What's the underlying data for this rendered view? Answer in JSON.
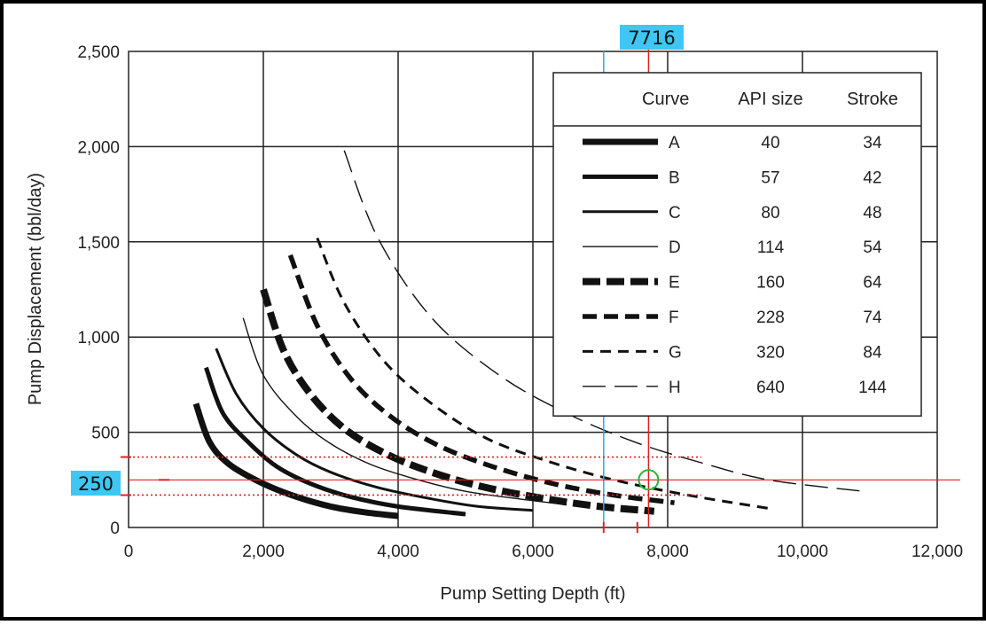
{
  "chart_data": {
    "type": "line",
    "title": "",
    "xlabel": "Pump Setting Depth (ft)",
    "ylabel": "Pump Displacement (bbl/day)",
    "xlim": [
      0,
      12000
    ],
    "ylim": [
      0,
      2500
    ],
    "xticks": [
      0,
      2000,
      4000,
      6000,
      8000,
      10000,
      12000
    ],
    "xtick_labels": [
      "0",
      "2,000",
      "4,000",
      "6,000",
      "8,000",
      "10,000",
      "12,000"
    ],
    "yticks": [
      0,
      500,
      1000,
      1500,
      2000,
      2500
    ],
    "ytick_labels": [
      "0",
      "500",
      "1,000",
      "1,500",
      "2,000",
      "2,500"
    ],
    "grid": true,
    "legend": {
      "placement": "top-right",
      "headers": [
        "Curve",
        "API size",
        "Stroke"
      ],
      "rows": [
        {
          "curve": "A",
          "api_size": "40",
          "stroke": "34"
        },
        {
          "curve": "B",
          "api_size": "57",
          "stroke": "42"
        },
        {
          "curve": "C",
          "api_size": "80",
          "stroke": "48"
        },
        {
          "curve": "D",
          "api_size": "114",
          "stroke": "54"
        },
        {
          "curve": "E",
          "api_size": "160",
          "stroke": "64"
        },
        {
          "curve": "F",
          "api_size": "228",
          "stroke": "74"
        },
        {
          "curve": "G",
          "api_size": "320",
          "stroke": "84"
        },
        {
          "curve": "H",
          "api_size": "640",
          "stroke": "144"
        }
      ]
    },
    "series": [
      {
        "name": "A",
        "x": [
          1000,
          1200,
          1500,
          2000,
          2500,
          3000,
          3500,
          4000
        ],
        "y": [
          650,
          450,
          330,
          230,
          160,
          110,
          80,
          60
        ]
      },
      {
        "name": "B",
        "x": [
          1150,
          1400,
          1800,
          2200,
          2700,
          3300,
          4000,
          5000
        ],
        "y": [
          840,
          600,
          440,
          320,
          230,
          160,
          110,
          70
        ]
      },
      {
        "name": "C",
        "x": [
          1300,
          1600,
          2000,
          2500,
          3000,
          3700,
          4500,
          5200,
          6000
        ],
        "y": [
          940,
          700,
          520,
          380,
          290,
          210,
          150,
          110,
          90
        ]
      },
      {
        "name": "D",
        "x": [
          1700,
          2000,
          2500,
          3000,
          3600,
          4300,
          5000,
          5800,
          6500
        ],
        "y": [
          1100,
          800,
          580,
          440,
          330,
          250,
          190,
          150,
          120
        ]
      },
      {
        "name": "E",
        "x": [
          2000,
          2300,
          2700,
          3200,
          3800,
          4500,
          5300,
          6200,
          7000,
          7800
        ],
        "y": [
          1250,
          930,
          700,
          520,
          390,
          290,
          210,
          150,
          110,
          85
        ]
      },
      {
        "name": "F",
        "x": [
          2400,
          2800,
          3300,
          3900,
          4600,
          5400,
          6300,
          7200,
          8100
        ],
        "y": [
          1430,
          1060,
          780,
          580,
          430,
          320,
          230,
          170,
          130
        ]
      },
      {
        "name": "G",
        "x": [
          2800,
          3200,
          3800,
          4500,
          5300,
          6200,
          7200,
          8300,
          9500
        ],
        "y": [
          1520,
          1180,
          870,
          650,
          470,
          350,
          250,
          170,
          100
        ]
      },
      {
        "name": "H",
        "x": [
          3200,
          3700,
          4500,
          5500,
          6500,
          7500,
          8500,
          9500,
          10900
        ],
        "y": [
          1980,
          1520,
          1100,
          800,
          600,
          450,
          340,
          250,
          190
        ]
      }
    ],
    "annotations": {
      "x_marker_label": "7716",
      "y_marker_label": "250",
      "x_marker": 7716,
      "x_marker_secondary": 7050,
      "y_marker": 250,
      "y_band": [
        370,
        170
      ]
    }
  }
}
